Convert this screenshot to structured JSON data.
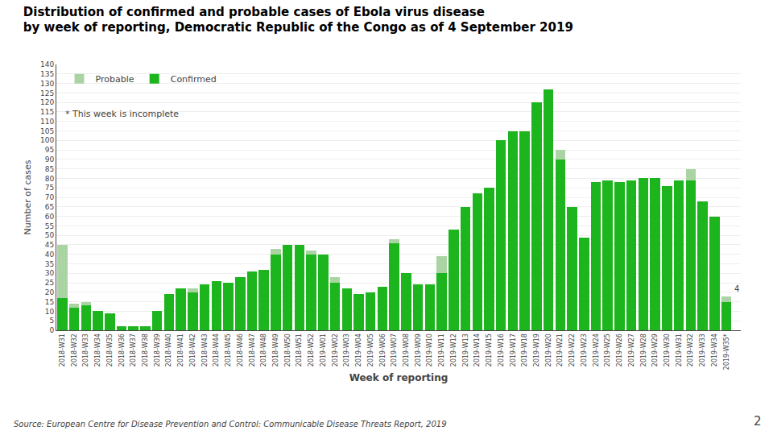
{
  "chart_data": {
    "type": "bar",
    "title": "Distribution of confirmed and probable cases of Ebola virus disease",
    "subtitle": "by week of reporting, Democratic Republic of the Congo as of 4 September 2019",
    "xlabel": "Week of reporting",
    "ylabel": "Number of cases",
    "categories": [
      "2018-W31",
      "2018-W32",
      "2018-W33",
      "2018-W34",
      "2018-W35",
      "2018-W36",
      "2018-W37",
      "2018-W38",
      "2018-W39",
      "2018-W40",
      "2018-W41",
      "2018-W42",
      "2018-W43",
      "2018-W44",
      "2018-W45",
      "2018-W46",
      "2018-W47",
      "2018-W48",
      "2018-W49",
      "2018-W50",
      "2018-W51",
      "2018-W52",
      "2019-W01",
      "2019-W02",
      "2019-W03",
      "2019-W04",
      "2019-W05",
      "2019-W06",
      "2019-W07",
      "2019-W08",
      "2019-W09",
      "2019-W10",
      "2019-W11",
      "2019-W12",
      "2019-W13",
      "2019-W14",
      "2019-W15",
      "2019-W16",
      "2019-W17",
      "2019-W18",
      "2019-W19",
      "2019-W20",
      "2019-W21",
      "2019-W22",
      "2019-W23",
      "2019-W24",
      "2019-W25",
      "2019-W26",
      "2019-W27",
      "2019-W28",
      "2019-W29",
      "2019-W30",
      "2019-W31",
      "2019-W32",
      "2019-W33",
      "2019-W34",
      "2019-W35*"
    ],
    "series": [
      {
        "name": "Confirmed",
        "color": "#1db51d",
        "values": [
          17,
          12,
          13,
          10,
          9,
          2,
          2,
          2,
          10,
          19,
          22,
          20,
          24,
          26,
          25,
          28,
          31,
          32,
          40,
          45,
          45,
          40,
          40,
          25,
          22,
          19,
          20,
          23,
          46,
          30,
          24,
          24,
          30,
          53,
          65,
          72,
          75,
          100,
          105,
          105,
          120,
          127,
          90,
          65,
          49,
          78,
          79,
          78,
          79,
          80,
          80,
          76,
          79,
          79,
          68,
          60,
          15
        ]
      },
      {
        "name": "Probable",
        "color": "#aad4a4",
        "values": [
          28,
          2,
          2,
          0,
          0,
          0,
          0,
          0,
          0,
          0,
          0,
          2,
          0,
          0,
          0,
          0,
          0,
          0,
          3,
          0,
          0,
          2,
          0,
          3,
          0,
          0,
          0,
          0,
          2,
          0,
          0,
          0,
          9,
          0,
          0,
          0,
          0,
          0,
          0,
          0,
          0,
          0,
          5,
          0,
          0,
          0,
          0,
          0,
          0,
          0,
          0,
          0,
          0,
          6,
          0,
          0,
          3
        ]
      }
    ],
    "stacked": true,
    "ylim": [
      0,
      140
    ],
    "yticks": [
      0,
      5,
      10,
      15,
      20,
      25,
      30,
      35,
      40,
      45,
      50,
      55,
      60,
      65,
      70,
      75,
      80,
      85,
      90,
      95,
      100,
      105,
      110,
      115,
      120,
      125,
      130,
      135,
      140
    ],
    "grid": true,
    "legend": "upper left",
    "annotations": [
      "* This week is incomplete",
      "4"
    ],
    "source": "Source: European Centre for Disease Prevention and Control: Communicable Disease Threats Report, 2019",
    "page_number": "2"
  }
}
